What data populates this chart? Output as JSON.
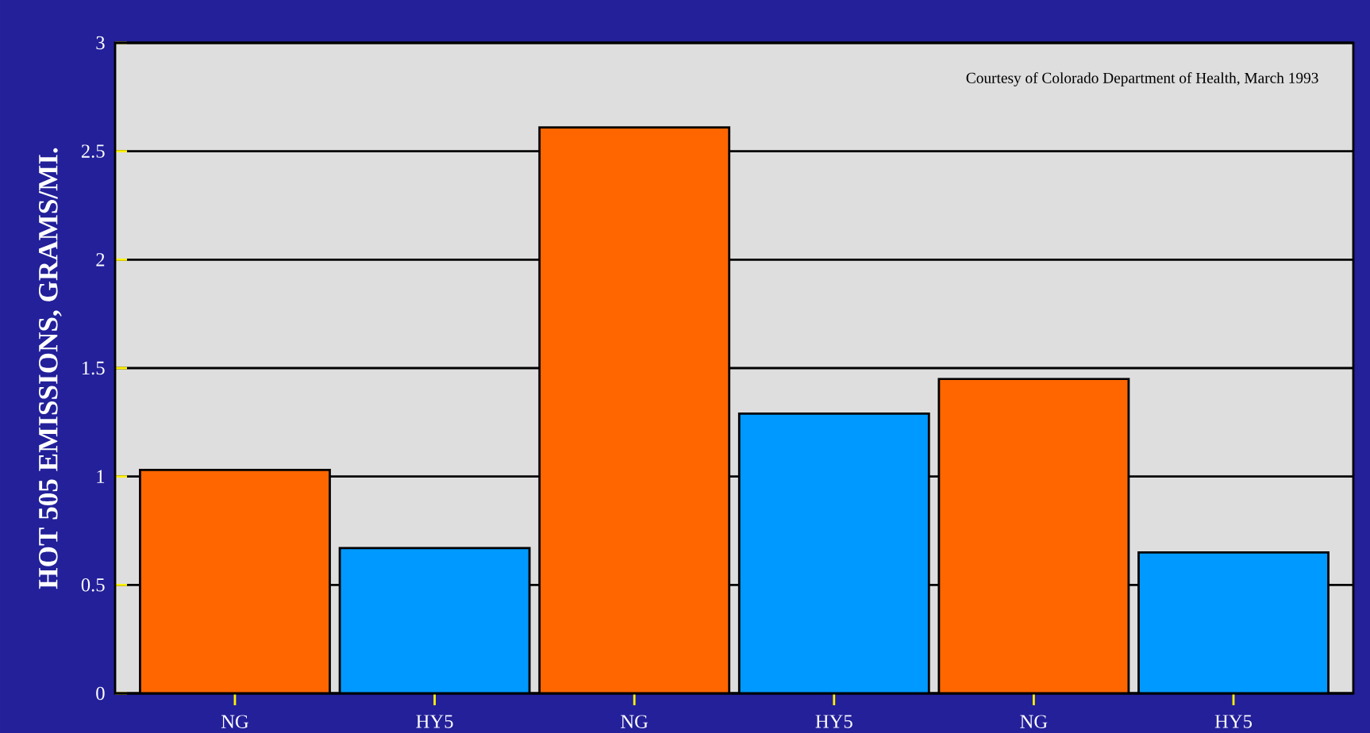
{
  "chart_data": {
    "type": "bar",
    "ylabel": "HOT 505 EMISSIONS, GRAMS/MI.",
    "categories": [
      "NG",
      "HY5",
      "NG",
      "HY5",
      "NG",
      "HY5"
    ],
    "values": [
      1.03,
      0.67,
      2.61,
      1.29,
      1.45,
      0.65
    ],
    "colors": [
      "#ff6600",
      "#0099ff",
      "#ff6600",
      "#0099ff",
      "#ff6600",
      "#0099ff"
    ],
    "ylim": [
      0,
      3
    ],
    "yticks": [
      0,
      0.5,
      1,
      1.5,
      2,
      2.5,
      3
    ],
    "grid": "y",
    "annotations": [
      "Courtesy of Colorado Department of Health, March 1993"
    ]
  }
}
